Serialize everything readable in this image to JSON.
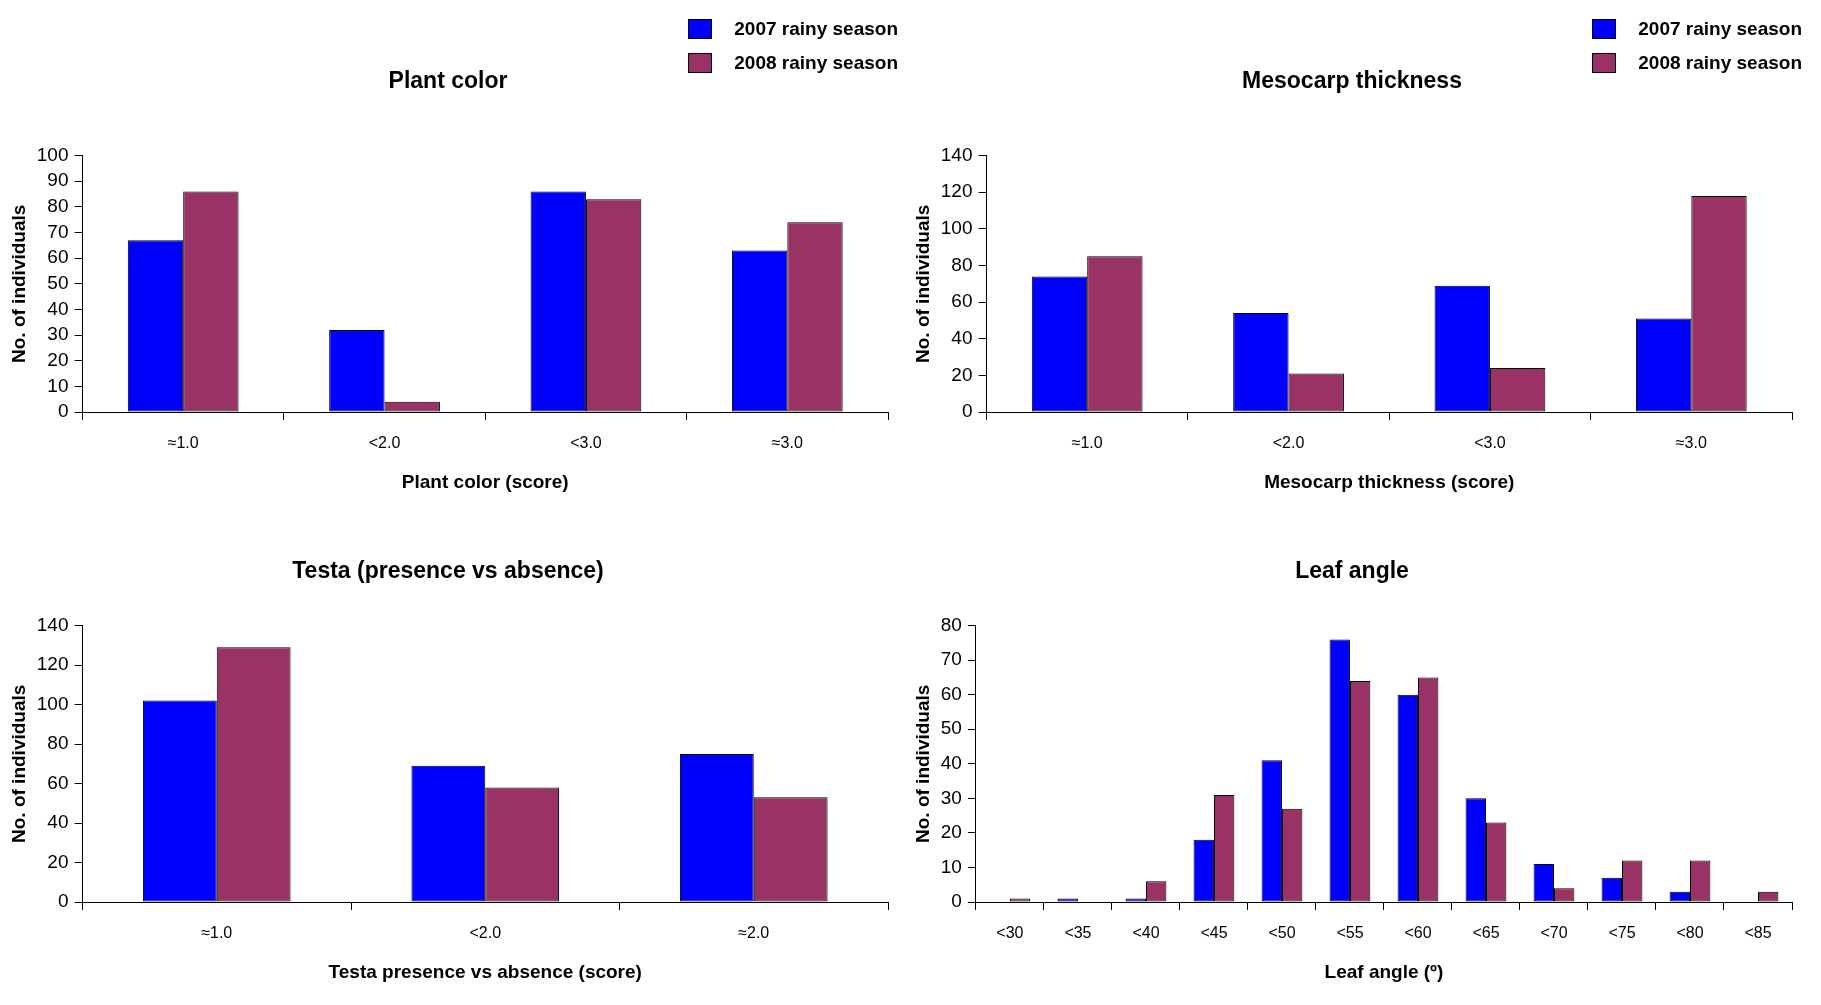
{
  "chart_data": [
    {
      "type": "bar",
      "title": "Plant color",
      "xlabel": "Plant color (score)",
      "ylabel": "No. of individuals",
      "categories": [
        "≈1.0",
        "<2.0",
        "<3.0",
        "≈3.0"
      ],
      "series": [
        {
          "name": "2007 rainy season",
          "color": "#0000ff",
          "values": [
            67,
            32,
            86,
            63
          ]
        },
        {
          "name": "2008 rainy season",
          "color": "#993366",
          "values": [
            86,
            4,
            83,
            74
          ]
        }
      ],
      "ylim": [
        0,
        100
      ],
      "yticks": [
        0,
        10,
        20,
        30,
        40,
        50,
        60,
        70,
        80,
        90,
        100
      ],
      "grid": false,
      "legend": "top right"
    },
    {
      "type": "bar",
      "title": "Mesocarp thickness",
      "xlabel": "Mesocarp thickness (score)",
      "ylabel": "No. of individuals",
      "categories": [
        "≈1.0",
        "<2.0",
        "<3.0",
        "≈3.0"
      ],
      "series": [
        {
          "name": "2007 rainy season",
          "color": "#0000ff",
          "values": [
            74,
            54,
            69,
            51
          ]
        },
        {
          "name": "2008 rainy season",
          "color": "#993366",
          "values": [
            85,
            21,
            24,
            118
          ]
        }
      ],
      "ylim": [
        0,
        140
      ],
      "yticks": [
        0,
        20,
        40,
        60,
        80,
        100,
        120,
        140
      ],
      "grid": false,
      "legend": "top right"
    },
    {
      "type": "bar",
      "title": "Testa (presence vs absence)",
      "xlabel": "Testa presence vs absence (score)",
      "ylabel": "No. of individuals",
      "categories": [
        "≈1.0",
        "<2.0",
        "≈2.0"
      ],
      "series": [
        {
          "color": "#0000ff",
          "values": [
            102,
            69,
            75
          ]
        },
        {
          "color": "#993366",
          "values": [
            129,
            58,
            53
          ]
        }
      ],
      "ylim": [
        0,
        140
      ],
      "yticks": [
        0,
        20,
        40,
        60,
        80,
        100,
        120,
        140
      ],
      "grid": false
    },
    {
      "type": "bar",
      "title": "Leaf angle",
      "xlabel": "Leaf angle (º)",
      "ylabel": "No. of individuals",
      "categories": [
        "<30",
        "<35",
        "<40",
        "<45",
        "<50",
        "<55",
        "<60",
        "<65",
        "<70",
        "<75",
        "<80",
        "<85"
      ],
      "series": [
        {
          "color": "#0000ff",
          "values": [
            0,
            1,
            1,
            18,
            41,
            76,
            60,
            30,
            11,
            7,
            3,
            0
          ]
        },
        {
          "color": "#993366",
          "values": [
            1,
            0,
            6,
            31,
            27,
            64,
            65,
            23,
            4,
            12,
            12,
            3
          ]
        }
      ],
      "ylim": [
        0,
        80
      ],
      "yticks": [
        0,
        10,
        20,
        30,
        40,
        50,
        60,
        70,
        80
      ],
      "grid": false
    }
  ]
}
